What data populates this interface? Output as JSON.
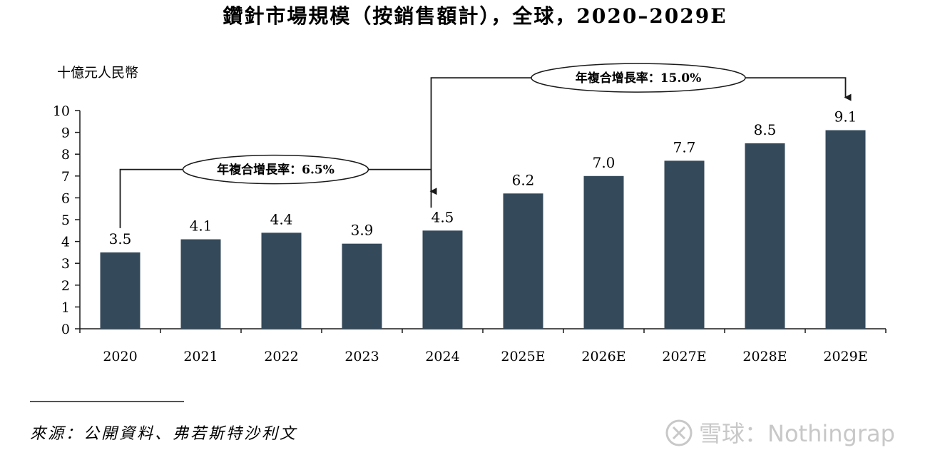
{
  "chart_data": {
    "type": "bar",
    "title": "鑽針市場規模（按銷售額計），全球，2020–2029E",
    "ylabel": "十億元人民幣",
    "xlabel": "",
    "ylim": [
      0,
      10
    ],
    "yticks": [
      0,
      1,
      2,
      3,
      4,
      5,
      6,
      7,
      8,
      9,
      10
    ],
    "grid": false,
    "legend": "none",
    "categories": [
      "2020",
      "2021",
      "2022",
      "2023",
      "2024",
      "2025E",
      "2026E",
      "2027E",
      "2028E",
      "2029E"
    ],
    "values": [
      3.5,
      4.1,
      4.4,
      3.9,
      4.5,
      6.2,
      7.0,
      7.7,
      8.5,
      9.1
    ],
    "data_labels": [
      "3.5",
      "4.1",
      "4.4",
      "3.9",
      "4.5",
      "6.2",
      "7.0",
      "7.7",
      "8.5",
      "9.1"
    ],
    "bar_color": "#34495a",
    "annotations": [
      {
        "text": "年複合增長率：6.5%",
        "from": "2020",
        "to": "2024"
      },
      {
        "text": "年複合增長率：15.0%",
        "from": "2024",
        "to": "2029E"
      }
    ]
  },
  "footer": {
    "source": "來源：公開資料、弗若斯特沙利文",
    "watermark": "雪球：Nothingrap"
  }
}
